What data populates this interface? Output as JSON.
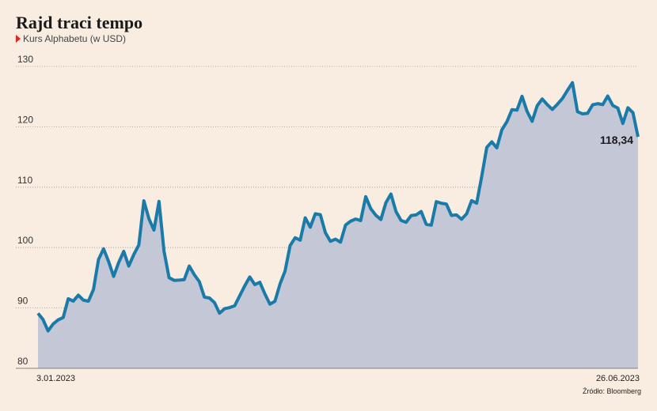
{
  "chart_data": {
    "type": "area",
    "title": "Rajd traci tempo",
    "subtitle": "Kurs Alphabetu (w USD)",
    "source": "Źródło: Bloomberg",
    "categories": [
      "3.01.2023",
      null,
      null,
      null,
      null,
      null,
      null,
      null,
      null,
      null,
      null,
      null,
      null,
      null,
      null,
      null,
      null,
      null,
      null,
      null,
      null,
      null,
      null,
      null,
      null,
      null,
      null,
      null,
      null,
      null,
      null,
      null,
      null,
      null,
      null,
      null,
      null,
      null,
      null,
      null,
      null,
      null,
      null,
      null,
      null,
      null,
      null,
      null,
      null,
      null,
      null,
      null,
      null,
      null,
      null,
      null,
      null,
      null,
      null,
      null,
      null,
      null,
      null,
      null,
      null,
      null,
      null,
      null,
      null,
      null,
      null,
      null,
      null,
      null,
      null,
      null,
      null,
      null,
      null,
      null,
      null,
      null,
      null,
      null,
      null,
      null,
      null,
      null,
      null,
      null,
      null,
      null,
      null,
      null,
      null,
      null,
      null,
      null,
      null,
      null,
      null,
      null,
      null,
      null,
      null,
      null,
      null,
      null,
      null,
      null,
      null,
      null,
      null,
      null,
      null,
      null,
      null,
      null,
      null,
      "26.06.2023"
    ],
    "values": [
      89.12,
      88.08,
      86.2,
      87.34,
      88.02,
      88.42,
      91.52,
      91.13,
      92.12,
      91.29,
      91.12,
      93.05,
      98.02,
      99.79,
      97.7,
      95.22,
      97.52,
      99.37,
      96.94,
      98.84,
      100.43,
      107.74,
      104.78,
      102.9,
      107.64,
      99.37,
      95.01,
      94.57,
      94.61,
      94.68,
      96.94,
      95.51,
      94.35,
      91.79,
      91.65,
      90.89,
      89.13,
      89.87,
      90.06,
      90.36,
      92.0,
      93.65,
      95.13,
      93.86,
      94.25,
      92.32,
      90.63,
      91.11,
      93.97,
      96.11,
      100.32,
      101.62,
      101.22,
      104.92,
      103.37,
      105.6,
      105.44,
      102.46,
      101.03,
      101.39,
      100.89,
      103.73,
      104.36,
      104.72,
      104.47,
      108.42,
      106.44,
      105.35,
      104.64,
      107.43,
      108.87,
      105.97,
      104.5,
      104.18,
      105.29,
      105.41,
      105.97,
      103.85,
      103.71,
      107.59,
      107.34,
      107.2,
      105.32,
      105.41,
      104.69,
      105.57,
      107.77,
      107.35,
      111.75,
      116.57,
      117.51,
      116.51,
      119.51,
      120.84,
      122.83,
      122.76,
      125.05,
      122.56,
      120.9,
      123.48,
      124.61,
      123.67,
      122.87,
      123.72,
      124.67,
      126.01,
      127.31,
      122.5,
      122.14,
      122.23,
      123.64,
      123.83,
      123.67,
      125.09,
      123.53,
      123.1,
      120.55,
      123.15,
      122.34,
      118.34
    ],
    "value_labels": [
      null,
      null,
      null,
      null,
      null,
      null,
      null,
      null,
      null,
      null,
      null,
      null,
      null,
      null,
      null,
      null,
      null,
      null,
      null,
      null,
      null,
      null,
      null,
      null,
      null,
      null,
      null,
      null,
      null,
      null,
      null,
      null,
      null,
      null,
      null,
      null,
      null,
      null,
      null,
      null,
      null,
      null,
      null,
      null,
      null,
      null,
      null,
      null,
      null,
      null,
      null,
      null,
      null,
      null,
      null,
      null,
      null,
      null,
      null,
      null,
      null,
      null,
      null,
      null,
      null,
      null,
      null,
      null,
      null,
      null,
      null,
      null,
      null,
      null,
      null,
      null,
      null,
      null,
      null,
      null,
      null,
      null,
      null,
      null,
      null,
      null,
      null,
      null,
      null,
      null,
      null,
      null,
      null,
      null,
      null,
      null,
      null,
      null,
      null,
      null,
      null,
      null,
      null,
      null,
      null,
      null,
      null,
      null,
      null,
      null,
      null,
      null,
      null,
      null,
      null,
      null,
      null,
      null,
      null,
      "118,34"
    ],
    "line_color": "#1a7aa8",
    "fill_color": "#c3c7d6",
    "ylim": [
      80,
      130
    ],
    "yticks": [
      80,
      90,
      100,
      110,
      120,
      130
    ],
    "grid": true
  }
}
